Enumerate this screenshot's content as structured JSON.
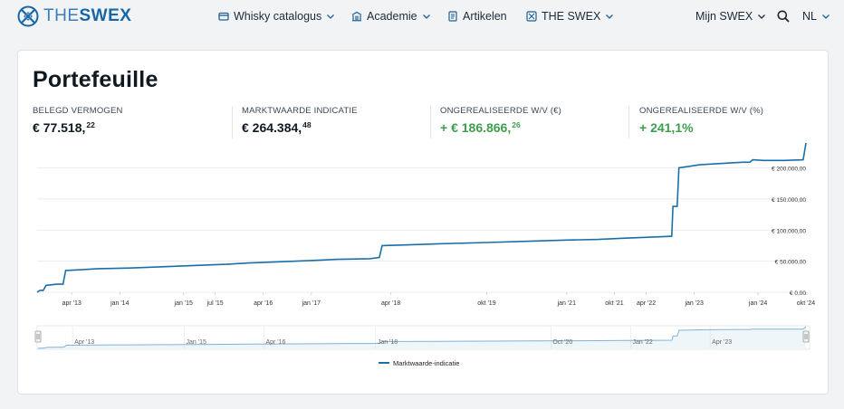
{
  "brand": {
    "the": "THE",
    "swex": "SWEX"
  },
  "nav": {
    "whisky": "Whisky catalogus",
    "academie": "Academie",
    "artikelen": "Artikelen",
    "theswex": "THE SWEX",
    "mijn": "Mijn SWEX",
    "lang": "NL"
  },
  "portfolio": {
    "title": "Portefeuille",
    "stats": [
      {
        "label": "BELEGD VERMOGEN",
        "main": "€ 77.518,",
        "cents": "22"
      },
      {
        "label": "MARKTWAARDE INDICATIE",
        "main": "€ 264.384,",
        "cents": "48"
      },
      {
        "label": "ONGEREALISEERDE W/V (€)",
        "main": "+ € 186.866,",
        "cents": "26"
      },
      {
        "label": "ONGEREALISEERDE W/V (%)",
        "main": "+ 241,1%",
        "cents": ""
      }
    ]
  },
  "colors": {
    "line": "#1a6fa8",
    "positive": "#3f9e4d",
    "nav_chart": "#7fb3d8"
  },
  "chart_data": {
    "type": "line",
    "series": [
      {
        "name": "Marktwaarde-indicatie",
        "points": [
          [
            "2012-09-15",
            0
          ],
          [
            "2012-10-01",
            3000
          ],
          [
            "2012-10-20",
            3000
          ],
          [
            "2012-11-05",
            11000
          ],
          [
            "2013-01-05",
            13000
          ],
          [
            "2013-02-10",
            13000
          ],
          [
            "2013-02-25",
            35000
          ],
          [
            "2013-05-01",
            36000
          ],
          [
            "2013-09-01",
            38000
          ],
          [
            "2014-03-01",
            39000
          ],
          [
            "2014-09-01",
            41000
          ],
          [
            "2015-03-01",
            43000
          ],
          [
            "2015-09-01",
            45000
          ],
          [
            "2016-01-01",
            47000
          ],
          [
            "2016-07-01",
            49000
          ],
          [
            "2017-01-01",
            51000
          ],
          [
            "2017-06-01",
            53000
          ],
          [
            "2017-12-01",
            54000
          ],
          [
            "2018-01-25",
            56000
          ],
          [
            "2018-02-10",
            75000
          ],
          [
            "2018-06-01",
            76000
          ],
          [
            "2019-01-01",
            78000
          ],
          [
            "2019-10-01",
            80000
          ],
          [
            "2020-06-01",
            82000
          ],
          [
            "2021-01-01",
            84000
          ],
          [
            "2021-07-01",
            85000
          ],
          [
            "2021-12-01",
            87000
          ],
          [
            "2022-06-01",
            89000
          ],
          [
            "2022-08-25",
            90000
          ],
          [
            "2022-09-01",
            138000
          ],
          [
            "2022-09-25",
            138000
          ],
          [
            "2022-10-05",
            200000
          ],
          [
            "2023-02-01",
            205000
          ],
          [
            "2023-06-01",
            207000
          ],
          [
            "2023-10-01",
            209000
          ],
          [
            "2023-11-15",
            209000
          ],
          [
            "2023-12-01",
            213000
          ],
          [
            "2024-02-01",
            212000
          ],
          [
            "2024-06-01",
            212000
          ],
          [
            "2024-09-15",
            213000
          ],
          [
            "2024-10-01",
            240000
          ]
        ]
      }
    ],
    "x_ticks": [
      [
        "2013-04-01",
        "apr '13"
      ],
      [
        "2014-01-01",
        "jan '14"
      ],
      [
        "2015-01-01",
        "jan '15"
      ],
      [
        "2015-07-01",
        "jul '15"
      ],
      [
        "2016-04-01",
        "apr '16"
      ],
      [
        "2017-01-01",
        "jan '17"
      ],
      [
        "2018-04-01",
        "apr '18"
      ],
      [
        "2019-10-01",
        "okt '19"
      ],
      [
        "2021-01-01",
        "jan '21"
      ],
      [
        "2021-10-01",
        "okt '21"
      ],
      [
        "2022-04-01",
        "apr '22"
      ],
      [
        "2023-01-01",
        "jan '23"
      ],
      [
        "2024-01-01",
        "jan '24"
      ],
      [
        "2024-10-01",
        "okt '24"
      ]
    ],
    "y_ticks": [
      [
        0,
        "€ 0,00"
      ],
      [
        50000,
        "€ 50.000,00"
      ],
      [
        100000,
        "€ 100.000,00"
      ],
      [
        150000,
        "€ 150.000,00"
      ],
      [
        200000,
        "€ 200.000,00"
      ]
    ],
    "nav_ticks": [
      [
        "2013-04-01",
        "Apr '13"
      ],
      [
        "2015-01-01",
        "Jan '15"
      ],
      [
        "2016-04-01",
        "Apr '16"
      ],
      [
        "2018-01-01",
        "Jan '18"
      ],
      [
        "2020-10-01",
        "Oct '20"
      ],
      [
        "2022-01-01",
        "Jan '22"
      ],
      [
        "2023-04-01",
        "Apr '23"
      ]
    ],
    "xlim": [
      "2012-09-15",
      "2024-10-01"
    ],
    "ylim": [
      0,
      240000
    ],
    "grid": true,
    "legend": "bottom-center"
  }
}
